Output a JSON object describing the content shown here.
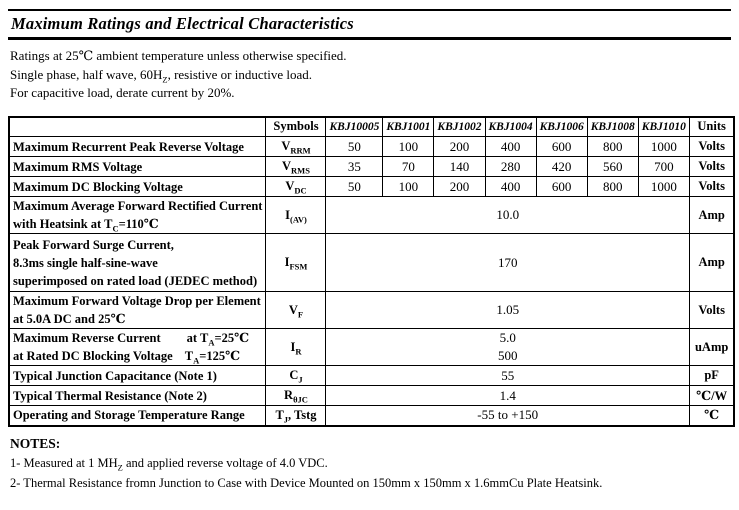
{
  "title": "Maximum Ratings and Electrical Characteristics",
  "conditions": [
    [
      {
        "t": "Ratings at 25℃ ambient temperature unless otherwise specified."
      }
    ],
    [
      {
        "t": "Single phase, half wave, 60H"
      },
      {
        "sub": "Z"
      },
      {
        "t": ", resistive or inductive load."
      }
    ],
    [
      {
        "t": "For capacitive load, derate current by 20%."
      }
    ]
  ],
  "table": {
    "corner_label": "",
    "symbols_header": "Symbols",
    "model_headers": [
      "KBJ10005",
      "KBJ1001",
      "KBJ1002",
      "KBJ1004",
      "KBJ1006",
      "KBJ1008",
      "KBJ1010"
    ],
    "units_header": "Units",
    "rows": [
      {
        "name": "vrrm",
        "label": [
          [
            {
              "t": "Maximum Recurrent Peak Reverse Voltage"
            }
          ]
        ],
        "symbol": [
          {
            "t": "V"
          },
          {
            "sub": "RRM"
          }
        ],
        "values": [
          "50",
          "100",
          "200",
          "400",
          "600",
          "800",
          "1000"
        ],
        "unit": "Volts"
      },
      {
        "name": "vrms",
        "label": [
          [
            {
              "t": "Maximum RMS Voltage"
            }
          ]
        ],
        "symbol": [
          {
            "t": "V"
          },
          {
            "sub": "RMS"
          }
        ],
        "values": [
          "35",
          "70",
          "140",
          "280",
          "420",
          "560",
          "700"
        ],
        "unit": "Volts"
      },
      {
        "name": "vdc",
        "label": [
          [
            {
              "t": "Maximum DC Blocking Voltage"
            }
          ]
        ],
        "symbol": [
          {
            "t": "V"
          },
          {
            "sub": "DC"
          }
        ],
        "values": [
          "50",
          "100",
          "200",
          "400",
          "600",
          "800",
          "1000"
        ],
        "unit": "Volts"
      },
      {
        "name": "iav",
        "label": [
          [
            {
              "t": "Maximum Average Forward Rectified Current"
            }
          ],
          [
            {
              "t": "with Heatsink at T"
            },
            {
              "sub": "C"
            },
            {
              "t": "=110℃"
            }
          ]
        ],
        "symbol": [
          {
            "t": "I"
          },
          {
            "sub": "(AV)"
          }
        ],
        "merged": [
          "10.0"
        ],
        "unit": "Amp"
      },
      {
        "name": "ifsm",
        "label": [
          [
            {
              "t": "Peak Forward Surge Current,"
            }
          ],
          [
            {
              "t": "8.3ms single half-sine-wave"
            }
          ],
          [
            {
              "t": "superimposed on rated load (JEDEC method)"
            }
          ]
        ],
        "symbol": [
          {
            "t": "I"
          },
          {
            "sub": "FSM"
          }
        ],
        "merged": [
          "170"
        ],
        "unit": "Amp"
      },
      {
        "name": "vf",
        "label": [
          [
            {
              "t": "Maximum Forward Voltage Drop per Element"
            }
          ],
          [
            {
              "t": "at 5.0A DC and 25℃"
            }
          ]
        ],
        "symbol": [
          {
            "t": "V"
          },
          {
            "sub": "F"
          }
        ],
        "merged": [
          "1.05"
        ],
        "unit": "Volts"
      },
      {
        "name": "ir",
        "label": [
          [
            {
              "t": "Maximum Reverse Current"
            },
            {
              "gap": 26
            },
            {
              "t": "at T"
            },
            {
              "sub": "A"
            },
            {
              "t": "=25℃"
            }
          ],
          [
            {
              "t": "at Rated DC Blocking Voltage"
            },
            {
              "gap": 12
            },
            {
              "t": "T"
            },
            {
              "sub": "A"
            },
            {
              "t": "=125℃"
            }
          ]
        ],
        "symbol": [
          {
            "t": "I"
          },
          {
            "sub": "R"
          }
        ],
        "merged": [
          "5.0",
          "500"
        ],
        "unit": "uAmp"
      },
      {
        "name": "cj",
        "label": [
          [
            {
              "t": "Typical Junction Capacitance (Note 1)"
            }
          ]
        ],
        "symbol": [
          {
            "t": "C"
          },
          {
            "sub": "J"
          }
        ],
        "merged": [
          "55"
        ],
        "unit": "pF"
      },
      {
        "name": "rthjc",
        "label": [
          [
            {
              "t": "Typical Thermal Resistance (Note 2)"
            }
          ]
        ],
        "symbol": [
          {
            "t": "R"
          },
          {
            "sub": "θJC"
          }
        ],
        "merged": [
          "1.4"
        ],
        "unit": "℃/W"
      },
      {
        "name": "tj-tstg",
        "label": [
          [
            {
              "t": "Operating and Storage Temperature Range"
            }
          ]
        ],
        "symbol": [
          {
            "t": "T"
          },
          {
            "sub": "J"
          },
          {
            "t": ",  Tstg"
          }
        ],
        "merged": [
          "-55 to +150"
        ],
        "unit": "℃"
      }
    ]
  },
  "notes": {
    "heading": "NOTES:",
    "items": [
      [
        {
          "t": "1- Measured at 1 MH"
        },
        {
          "sub": "Z"
        },
        {
          "t": " and applied reverse voltage of 4.0 VDC."
        }
      ],
      [
        {
          "t": "2- Thermal Resistance fromn Junction to Case with Device Mounted on 150mm x 150mm x 1.6mmCu Plate Heatsink."
        }
      ]
    ]
  }
}
